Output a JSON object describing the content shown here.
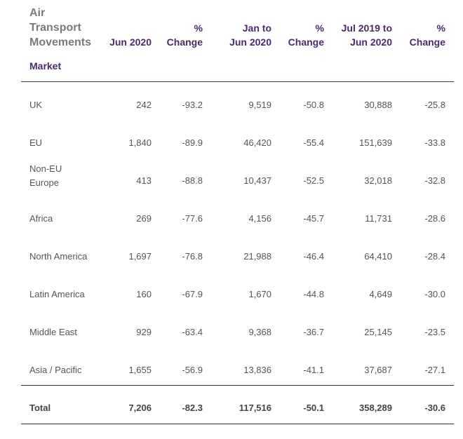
{
  "table": {
    "title": "Air\nTransport\nMovements",
    "row_header": "Market",
    "columns": [
      "Jun 2020",
      "% Change",
      "Jan to Jun 2020",
      "% Change",
      "Jul 2019 to Jun 2020",
      "% Change"
    ],
    "column_display": [
      "Jun 2020",
      "%\nChange",
      "Jan to\nJun 2020",
      "%\nChange",
      "Jul 2019 to\nJun 2020",
      "%\nChange"
    ],
    "rows": [
      {
        "market": "UK",
        "values": [
          "242",
          "-93.2",
          "9,519",
          "-50.8",
          "30,888",
          "-25.8"
        ]
      },
      {
        "market": "EU",
        "values": [
          "1,840",
          "-89.9",
          "46,420",
          "-55.4",
          "151,639",
          "-33.8"
        ]
      },
      {
        "market": "Non-EU\nEurope",
        "values": [
          "413",
          "-88.8",
          "10,437",
          "-52.5",
          "32,018",
          "-32.8"
        ]
      },
      {
        "market": "Africa",
        "values": [
          "269",
          "-77.6",
          "4,156",
          "-45.7",
          "11,731",
          "-28.6"
        ]
      },
      {
        "market": "North America",
        "values": [
          "1,697",
          "-76.8",
          "21,988",
          "-46.4",
          "64,410",
          "-28.4"
        ]
      },
      {
        "market": "Latin America",
        "values": [
          "160",
          "-67.9",
          "1,670",
          "-44.8",
          "4,649",
          "-30.0"
        ]
      },
      {
        "market": "Middle East",
        "values": [
          "929",
          "-63.4",
          "9,368",
          "-36.7",
          "25,145",
          "-23.5"
        ]
      },
      {
        "market": "Asia / Pacific",
        "values": [
          "1,655",
          "-56.9",
          "13,836",
          "-41.1",
          "37,687",
          "-27.1"
        ]
      }
    ],
    "total": {
      "market": "Total",
      "values": [
        "7,206",
        "-82.3",
        "117,516",
        "-50.1",
        "358,289",
        "-30.6"
      ]
    }
  }
}
